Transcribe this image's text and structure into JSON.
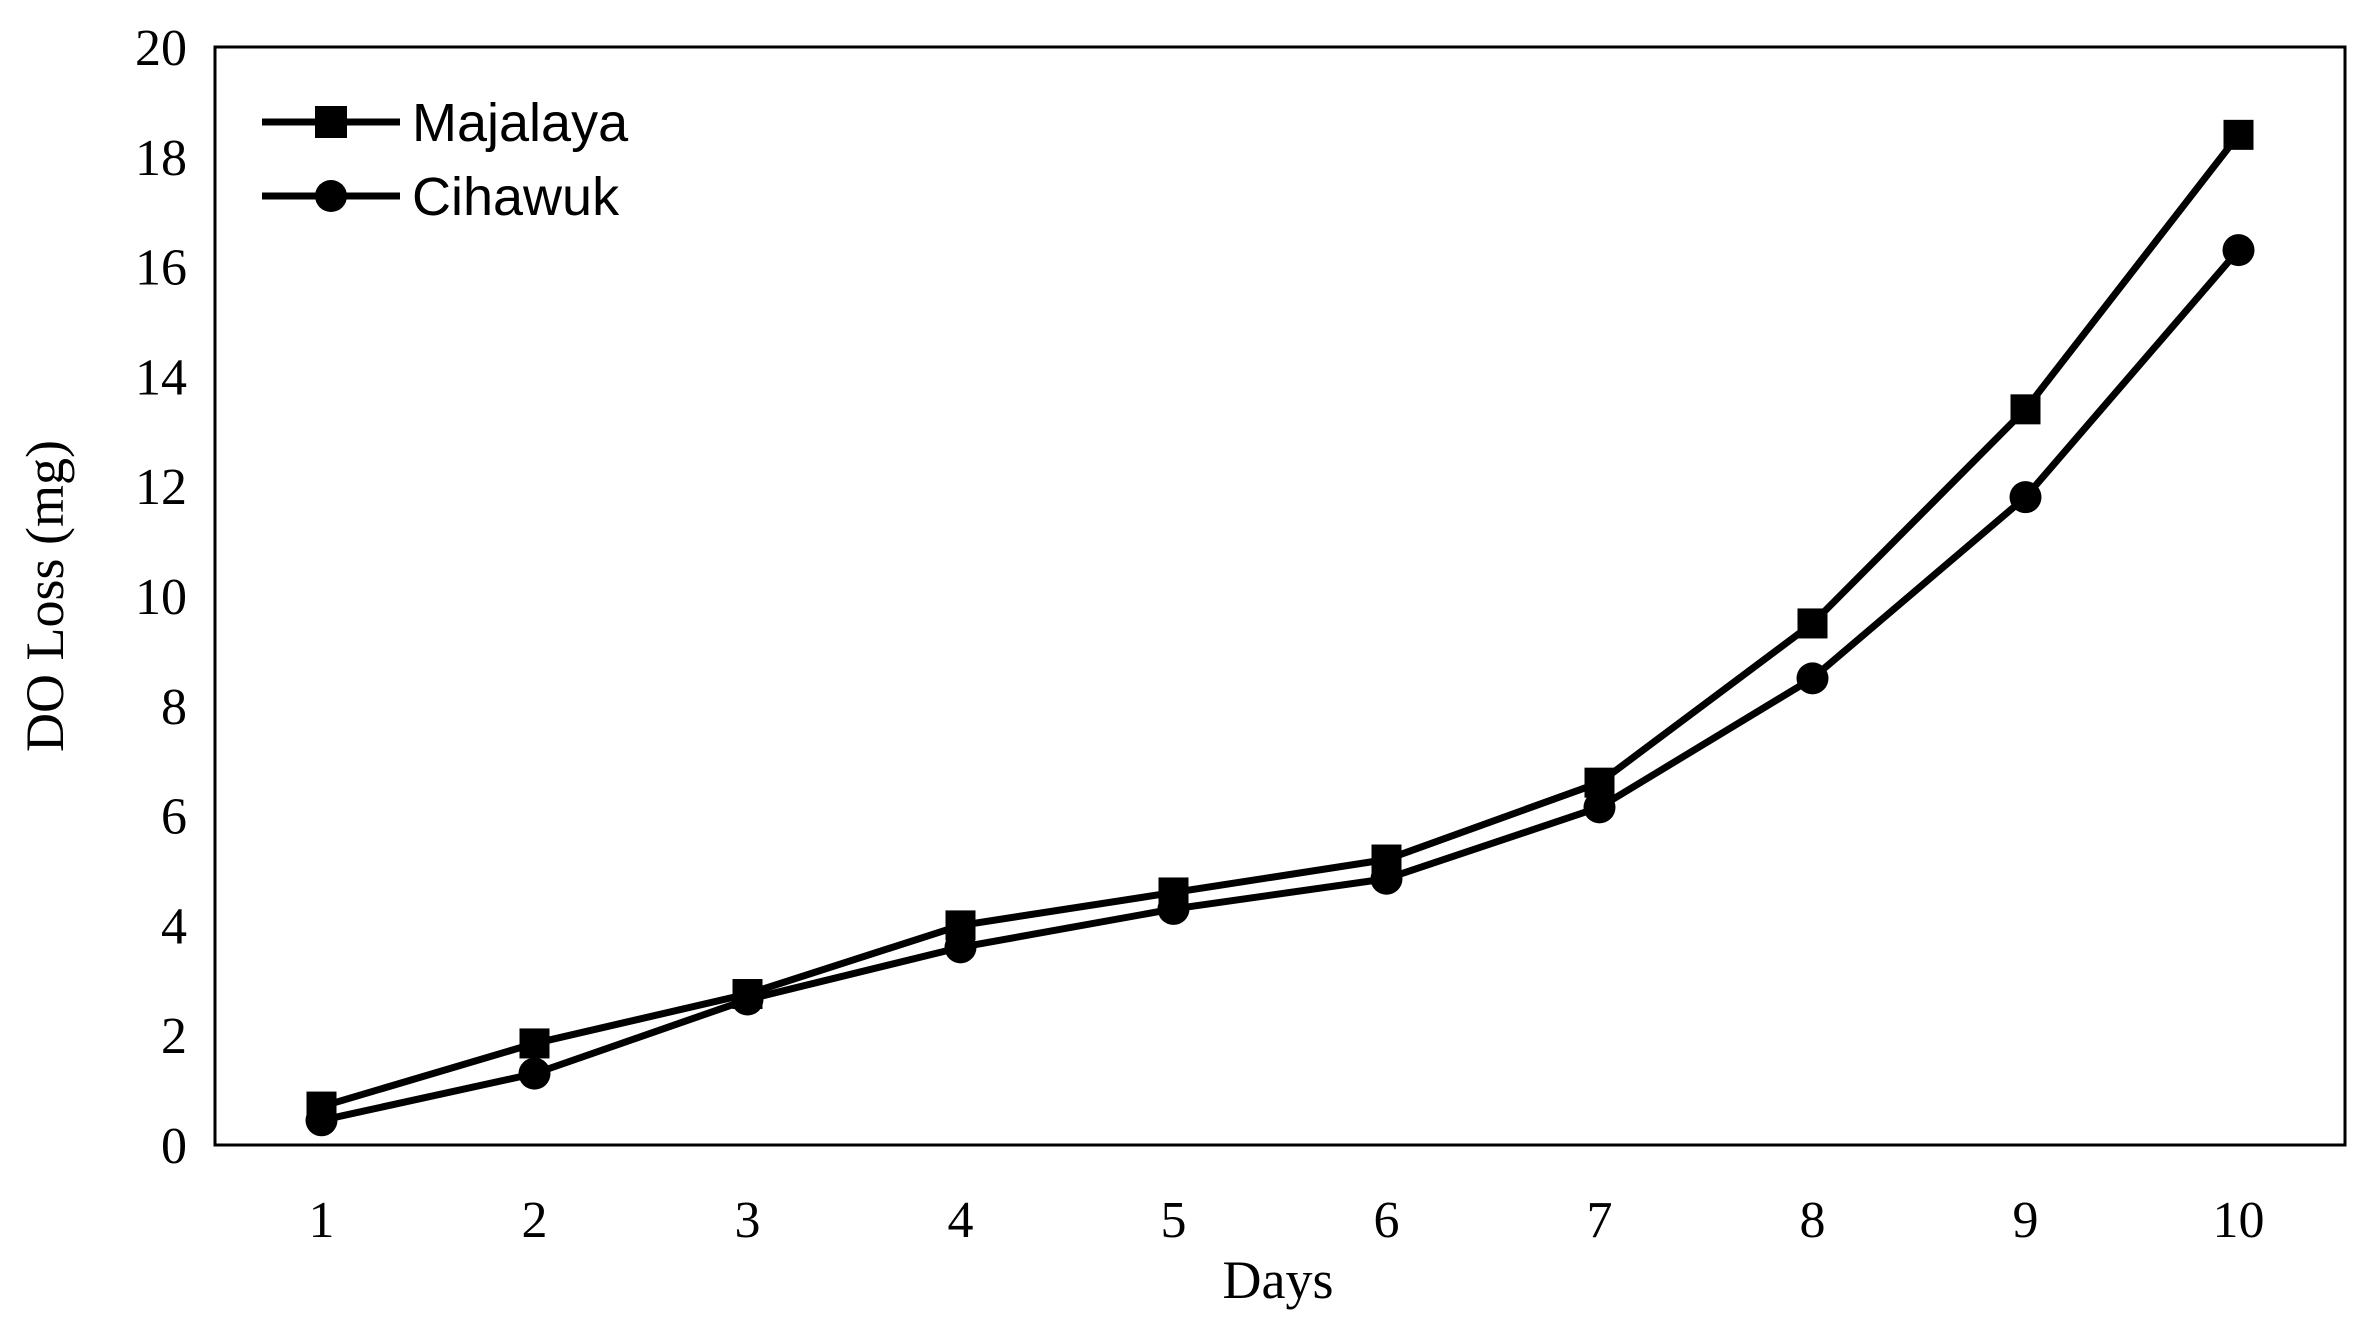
{
  "chart_data": {
    "type": "line",
    "xlabel": "Days",
    "ylabel": "DO Loss (mg)",
    "x": [
      1,
      2,
      3,
      4,
      5,
      6,
      7,
      8,
      9,
      10
    ],
    "xlim": [
      0.5,
      10.5
    ],
    "ylim": [
      0,
      20
    ],
    "yticks": [
      0,
      2,
      4,
      6,
      8,
      10,
      12,
      14,
      16,
      18,
      20
    ],
    "grid": false,
    "legend_position": "top-left",
    "series": [
      {
        "name": "Majalaya",
        "marker": "square",
        "color": "#000000",
        "values": [
          0.7,
          1.85,
          2.75,
          4.0,
          4.6,
          5.2,
          6.6,
          9.5,
          13.4,
          18.4
        ]
      },
      {
        "name": "Cihawuk",
        "marker": "circle",
        "color": "#000000",
        "values": [
          0.45,
          1.3,
          2.65,
          3.6,
          4.3,
          4.85,
          6.15,
          8.5,
          11.8,
          16.3
        ]
      }
    ]
  }
}
